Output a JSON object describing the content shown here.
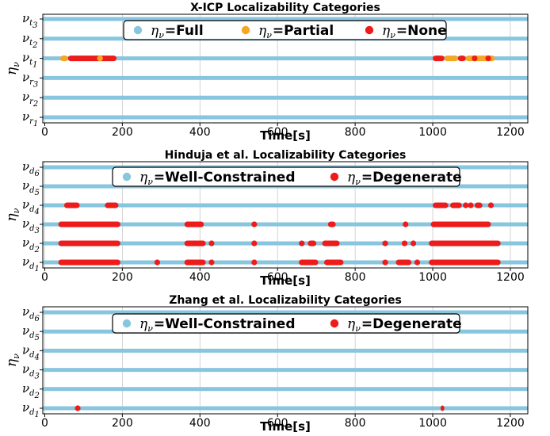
{
  "chart_data": [
    {
      "type": "scatter",
      "title": "X-ICP Localizability Categories",
      "xlabel": "Time[s]",
      "ylabel": "η_ν",
      "xlim": [
        -5,
        1245
      ],
      "xticks": [
        0,
        200,
        400,
        600,
        800,
        1000,
        1200
      ],
      "grid": true,
      "colors": {
        "Full": "#87c6de",
        "Partial": "#f5a623",
        "None": "#ee1b1b"
      },
      "legend": {
        "placement": "upper-center",
        "entries": [
          {
            "symbol": "η",
            "sub": "ν",
            "label": "Full",
            "color": "#87c6de"
          },
          {
            "symbol": "η",
            "sub": "ν",
            "label": "Partial",
            "color": "#f5a623"
          },
          {
            "symbol": "η",
            "sub": "ν",
            "label": "None",
            "color": "#ee1b1b"
          }
        ]
      },
      "rows": [
        {
          "base": "ν",
          "sub": "r",
          "subsub": "1"
        },
        {
          "base": "ν",
          "sub": "r",
          "subsub": "2"
        },
        {
          "base": "ν",
          "sub": "r",
          "subsub": "3"
        },
        {
          "base": "ν",
          "sub": "t",
          "subsub": "1"
        },
        {
          "base": "ν",
          "sub": "t",
          "subsub": "2"
        },
        {
          "base": "ν",
          "sub": "t",
          "subsub": "3"
        }
      ],
      "segments": [
        {
          "row": 3,
          "start": 40,
          "end": 60,
          "category": "Partial"
        },
        {
          "row": 3,
          "start": 60,
          "end": 185,
          "category": "None"
        },
        {
          "row": 3,
          "start": 135,
          "end": 150,
          "category": "Partial"
        },
        {
          "row": 3,
          "start": 1000,
          "end": 1030,
          "category": "None"
        },
        {
          "row": 3,
          "start": 1030,
          "end": 1065,
          "category": "Partial"
        },
        {
          "row": 3,
          "start": 1065,
          "end": 1085,
          "category": "None"
        },
        {
          "row": 3,
          "start": 1085,
          "end": 1160,
          "category": "Partial"
        }
      ],
      "points": [
        {
          "row": 3,
          "x": 1108,
          "category": "None"
        },
        {
          "row": 3,
          "x": 1143,
          "category": "None"
        }
      ]
    },
    {
      "type": "scatter",
      "title": "Hinduja et al. Localizability Categories",
      "xlabel": "Time[s]",
      "ylabel": "η_ν",
      "xlim": [
        -5,
        1245
      ],
      "xticks": [
        0,
        200,
        400,
        600,
        800,
        1000,
        1200
      ],
      "grid": true,
      "colors": {
        "Well-Constrained": "#87c6de",
        "Degenerate": "#ee1b1b"
      },
      "legend": {
        "placement": "upper-center",
        "entries": [
          {
            "symbol": "η",
            "sub": "ν",
            "label": "Well-Constrained",
            "color": "#87c6de"
          },
          {
            "symbol": "η",
            "sub": "ν",
            "label": "Degenerate",
            "color": "#ee1b1b"
          }
        ]
      },
      "rows": [
        {
          "base": "ν",
          "sub": "d",
          "subsub": "1"
        },
        {
          "base": "ν",
          "sub": "d",
          "subsub": "2"
        },
        {
          "base": "ν",
          "sub": "d",
          "subsub": "3"
        },
        {
          "base": "ν",
          "sub": "d",
          "subsub": "4"
        },
        {
          "base": "ν",
          "sub": "d",
          "subsub": "5"
        },
        {
          "base": "ν",
          "sub": "d",
          "subsub": "6"
        }
      ],
      "segments": [
        {
          "row": 0,
          "start": 35,
          "end": 195,
          "category": "Degenerate"
        },
        {
          "row": 0,
          "start": 360,
          "end": 415,
          "category": "Degenerate"
        },
        {
          "row": 0,
          "start": 655,
          "end": 705,
          "category": "Degenerate"
        },
        {
          "row": 0,
          "start": 720,
          "end": 770,
          "category": "Degenerate"
        },
        {
          "row": 0,
          "start": 870,
          "end": 885,
          "category": "Degenerate"
        },
        {
          "row": 0,
          "start": 905,
          "end": 945,
          "category": "Degenerate"
        },
        {
          "row": 0,
          "start": 990,
          "end": 1175,
          "category": "Degenerate"
        },
        {
          "row": 1,
          "start": 35,
          "end": 195,
          "category": "Degenerate"
        },
        {
          "row": 1,
          "start": 360,
          "end": 415,
          "category": "Degenerate"
        },
        {
          "row": 1,
          "start": 655,
          "end": 670,
          "category": "Degenerate"
        },
        {
          "row": 1,
          "start": 678,
          "end": 700,
          "category": "Degenerate"
        },
        {
          "row": 1,
          "start": 715,
          "end": 760,
          "category": "Degenerate"
        },
        {
          "row": 1,
          "start": 870,
          "end": 885,
          "category": "Degenerate"
        },
        {
          "row": 1,
          "start": 920,
          "end": 935,
          "category": "Degenerate"
        },
        {
          "row": 1,
          "start": 990,
          "end": 1175,
          "category": "Degenerate"
        },
        {
          "row": 2,
          "start": 35,
          "end": 195,
          "category": "Degenerate"
        },
        {
          "row": 2,
          "start": 360,
          "end": 410,
          "category": "Degenerate"
        },
        {
          "row": 2,
          "start": 730,
          "end": 750,
          "category": "Degenerate"
        },
        {
          "row": 2,
          "start": 995,
          "end": 1150,
          "category": "Degenerate"
        },
        {
          "row": 3,
          "start": 50,
          "end": 90,
          "category": "Degenerate"
        },
        {
          "row": 3,
          "start": 155,
          "end": 190,
          "category": "Degenerate"
        },
        {
          "row": 3,
          "start": 1000,
          "end": 1040,
          "category": "Degenerate"
        },
        {
          "row": 3,
          "start": 1045,
          "end": 1075,
          "category": "Degenerate"
        },
        {
          "row": 3,
          "start": 1108,
          "end": 1128,
          "category": "Degenerate"
        }
      ],
      "points": [
        {
          "row": 0,
          "x": 290,
          "category": "Degenerate"
        },
        {
          "row": 0,
          "x": 430,
          "category": "Degenerate"
        },
        {
          "row": 0,
          "x": 540,
          "category": "Degenerate"
        },
        {
          "row": 0,
          "x": 960,
          "category": "Degenerate"
        },
        {
          "row": 1,
          "x": 430,
          "category": "Degenerate"
        },
        {
          "row": 1,
          "x": 540,
          "category": "Degenerate"
        },
        {
          "row": 1,
          "x": 950,
          "category": "Degenerate"
        },
        {
          "row": 2,
          "x": 540,
          "category": "Degenerate"
        },
        {
          "row": 2,
          "x": 930,
          "category": "Degenerate"
        },
        {
          "row": 3,
          "x": 1085,
          "category": "Degenerate"
        },
        {
          "row": 3,
          "x": 1098,
          "category": "Degenerate"
        },
        {
          "row": 3,
          "x": 1150,
          "category": "Degenerate"
        }
      ]
    },
    {
      "type": "scatter",
      "title": "Zhang et al. Localizability Categories",
      "xlabel": "Time[s]",
      "ylabel": "η_ν",
      "xlim": [
        -5,
        1245
      ],
      "xticks": [
        0,
        200,
        400,
        600,
        800,
        1000,
        1200
      ],
      "grid": true,
      "colors": {
        "Well-Constrained": "#87c6de",
        "Degenerate": "#ee1b1b"
      },
      "legend": {
        "placement": "upper-center",
        "entries": [
          {
            "symbol": "η",
            "sub": "ν",
            "label": "Well-Constrained",
            "color": "#87c6de"
          },
          {
            "symbol": "η",
            "sub": "ν",
            "label": "Degenerate",
            "color": "#ee1b1b"
          }
        ]
      },
      "rows": [
        {
          "base": "ν",
          "sub": "d",
          "subsub": "1"
        },
        {
          "base": "ν",
          "sub": "d",
          "subsub": "2"
        },
        {
          "base": "ν",
          "sub": "d",
          "subsub": "3"
        },
        {
          "base": "ν",
          "sub": "d",
          "subsub": "4"
        },
        {
          "base": "ν",
          "sub": "d",
          "subsub": "5"
        },
        {
          "base": "ν",
          "sub": "d",
          "subsub": "6"
        }
      ],
      "segments": [
        {
          "row": 0,
          "start": 1020,
          "end": 1030,
          "category": "Degenerate"
        }
      ],
      "points": [
        {
          "row": 0,
          "x": 85,
          "category": "Degenerate"
        }
      ]
    }
  ]
}
